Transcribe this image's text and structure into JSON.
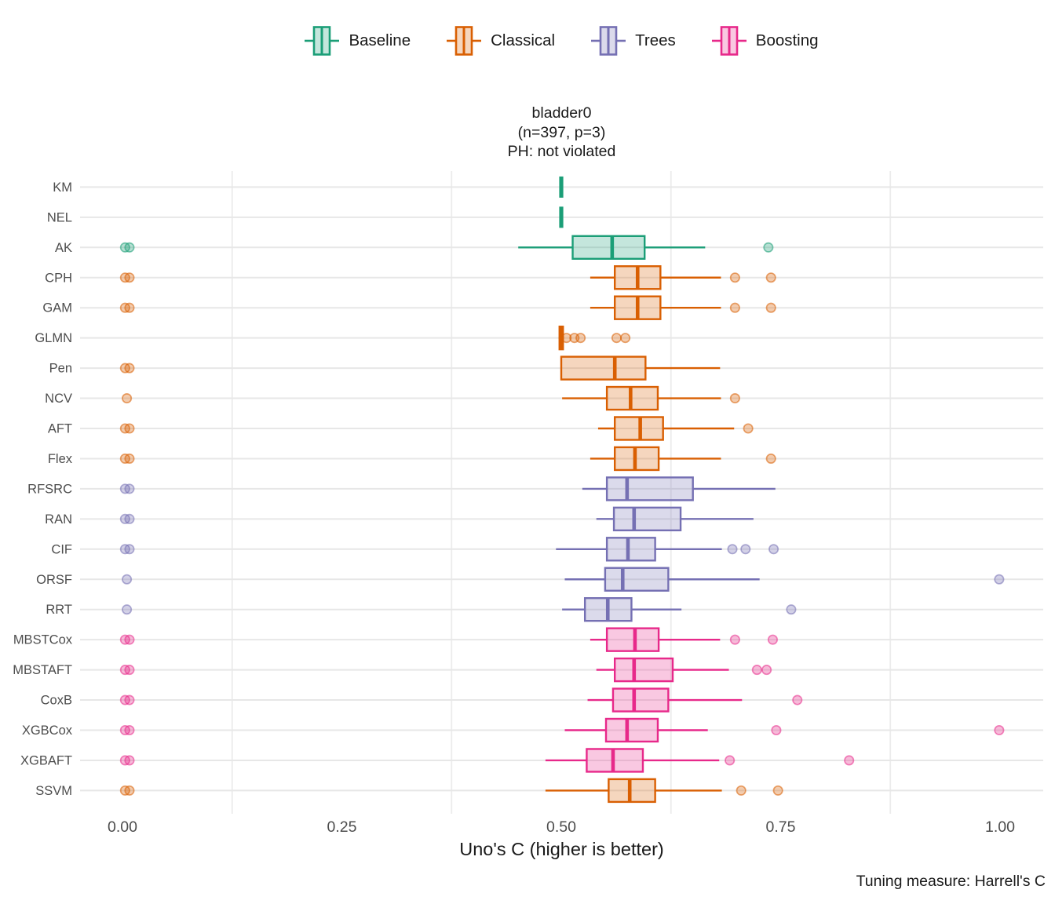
{
  "title": {
    "line1": "bladder0",
    "line2": "(n=397, p=3)",
    "line3": "PH: not violated"
  },
  "legend": {
    "items": [
      {
        "label": "Baseline",
        "color": "#1B9E77"
      },
      {
        "label": "Classical",
        "color": "#D95F02"
      },
      {
        "label": "Trees",
        "color": "#7570B3"
      },
      {
        "label": "Boosting",
        "color": "#E7298A"
      }
    ]
  },
  "axis": {
    "x_title": "Uno's C (higher is better)",
    "x_ticks": [
      {
        "value": 0.0,
        "label": "0.00"
      },
      {
        "value": 0.25,
        "label": "0.25"
      },
      {
        "value": 0.5,
        "label": "0.50"
      },
      {
        "value": 0.75,
        "label": "0.75"
      },
      {
        "value": 1.0,
        "label": "1.00"
      }
    ]
  },
  "caption": "Tuning measure: Harrell's C",
  "chart_data": {
    "type": "boxplot",
    "orientation": "horizontal",
    "title": "bladder0 (n=397, p=3) PH: not violated",
    "xlabel": "Uno's C (higher is better)",
    "xlim": [
      0,
      1
    ],
    "x_major_breaks": [
      0,
      0.25,
      0.5,
      0.75,
      1.0
    ],
    "x_minor_gridlines": [
      0.125,
      0.375,
      0.625,
      0.875
    ],
    "legend_position": "top",
    "group_colors": {
      "Baseline": "#1B9E77",
      "Classical": "#D95F02",
      "Trees": "#7570B3",
      "Boosting": "#E7298A"
    },
    "rows": [
      {
        "model": "KM",
        "group": "Baseline",
        "low": 0.5,
        "q1": 0.5,
        "median": 0.5,
        "q3": 0.5,
        "high": 0.5,
        "outliers": []
      },
      {
        "model": "NEL",
        "group": "Baseline",
        "low": 0.5,
        "q1": 0.5,
        "median": 0.5,
        "q3": 0.5,
        "high": 0.5,
        "outliers": []
      },
      {
        "model": "AK",
        "group": "Baseline",
        "low": 0.451,
        "q1": 0.513,
        "median": 0.558,
        "q3": 0.595,
        "high": 0.664,
        "outliers": [
          0.003,
          0.008,
          0.736
        ]
      },
      {
        "model": "CPH",
        "group": "Classical",
        "low": 0.533,
        "q1": 0.561,
        "median": 0.587,
        "q3": 0.613,
        "high": 0.682,
        "outliers": [
          0.003,
          0.008,
          0.698,
          0.739
        ]
      },
      {
        "model": "GAM",
        "group": "Classical",
        "low": 0.533,
        "q1": 0.561,
        "median": 0.587,
        "q3": 0.613,
        "high": 0.682,
        "outliers": [
          0.003,
          0.008,
          0.698,
          0.739
        ]
      },
      {
        "model": "GLMN",
        "group": "Classical",
        "low": 0.497,
        "q1": 0.498,
        "median": 0.5,
        "q3": 0.502,
        "high": 0.503,
        "outliers": [
          0.506,
          0.515,
          0.522,
          0.563,
          0.573
        ]
      },
      {
        "model": "Pen",
        "group": "Classical",
        "low": 0.5,
        "q1": 0.5,
        "median": 0.561,
        "q3": 0.596,
        "high": 0.681,
        "outliers": [
          0.003,
          0.008
        ]
      },
      {
        "model": "NCV",
        "group": "Classical",
        "low": 0.501,
        "q1": 0.552,
        "median": 0.579,
        "q3": 0.61,
        "high": 0.682,
        "outliers": [
          0.005,
          0.698
        ]
      },
      {
        "model": "AFT",
        "group": "Classical",
        "low": 0.542,
        "q1": 0.561,
        "median": 0.59,
        "q3": 0.616,
        "high": 0.697,
        "outliers": [
          0.003,
          0.008,
          0.713
        ]
      },
      {
        "model": "Flex",
        "group": "Classical",
        "low": 0.533,
        "q1": 0.561,
        "median": 0.584,
        "q3": 0.611,
        "high": 0.682,
        "outliers": [
          0.003,
          0.008,
          0.739
        ]
      },
      {
        "model": "RFSRC",
        "group": "Trees",
        "low": 0.524,
        "q1": 0.552,
        "median": 0.575,
        "q3": 0.65,
        "high": 0.744,
        "outliers": [
          0.003,
          0.008
        ]
      },
      {
        "model": "RAN",
        "group": "Trees",
        "low": 0.54,
        "q1": 0.56,
        "median": 0.583,
        "q3": 0.636,
        "high": 0.719,
        "outliers": [
          0.003,
          0.008
        ]
      },
      {
        "model": "CIF",
        "group": "Trees",
        "low": 0.494,
        "q1": 0.552,
        "median": 0.576,
        "q3": 0.607,
        "high": 0.683,
        "outliers": [
          0.003,
          0.008,
          0.695,
          0.71,
          0.742
        ]
      },
      {
        "model": "ORSF",
        "group": "Trees",
        "low": 0.504,
        "q1": 0.55,
        "median": 0.57,
        "q3": 0.622,
        "high": 0.726,
        "outliers": [
          0.005,
          0.999
        ]
      },
      {
        "model": "RRT",
        "group": "Trees",
        "low": 0.501,
        "q1": 0.527,
        "median": 0.553,
        "q3": 0.58,
        "high": 0.637,
        "outliers": [
          0.005,
          0.762
        ]
      },
      {
        "model": "MBSTCox",
        "group": "Boosting",
        "low": 0.533,
        "q1": 0.552,
        "median": 0.584,
        "q3": 0.611,
        "high": 0.681,
        "outliers": [
          0.003,
          0.008,
          0.698,
          0.741
        ]
      },
      {
        "model": "MBSTAFT",
        "group": "Boosting",
        "low": 0.54,
        "q1": 0.561,
        "median": 0.583,
        "q3": 0.627,
        "high": 0.691,
        "outliers": [
          0.003,
          0.008,
          0.723,
          0.734
        ]
      },
      {
        "model": "CoxB",
        "group": "Boosting",
        "low": 0.53,
        "q1": 0.559,
        "median": 0.583,
        "q3": 0.622,
        "high": 0.706,
        "outliers": [
          0.003,
          0.008,
          0.769
        ]
      },
      {
        "model": "XGBCox",
        "group": "Boosting",
        "low": 0.504,
        "q1": 0.551,
        "median": 0.575,
        "q3": 0.61,
        "high": 0.667,
        "outliers": [
          0.003,
          0.008,
          0.745,
          0.999
        ]
      },
      {
        "model": "XGBAFT",
        "group": "Boosting",
        "low": 0.482,
        "q1": 0.529,
        "median": 0.559,
        "q3": 0.593,
        "high": 0.68,
        "outliers": [
          0.003,
          0.008,
          0.692,
          0.828
        ]
      },
      {
        "model": "SSVM",
        "group": "Classical",
        "low": 0.482,
        "q1": 0.554,
        "median": 0.578,
        "q3": 0.607,
        "high": 0.683,
        "outliers": [
          0.003,
          0.008,
          0.705,
          0.747
        ]
      }
    ]
  },
  "style_colors": {
    "gridline_major": "#e7e7e7",
    "gridline_minor": "#ececec",
    "axis_text": "#4d4d4d",
    "text": "#1a1a1a"
  }
}
